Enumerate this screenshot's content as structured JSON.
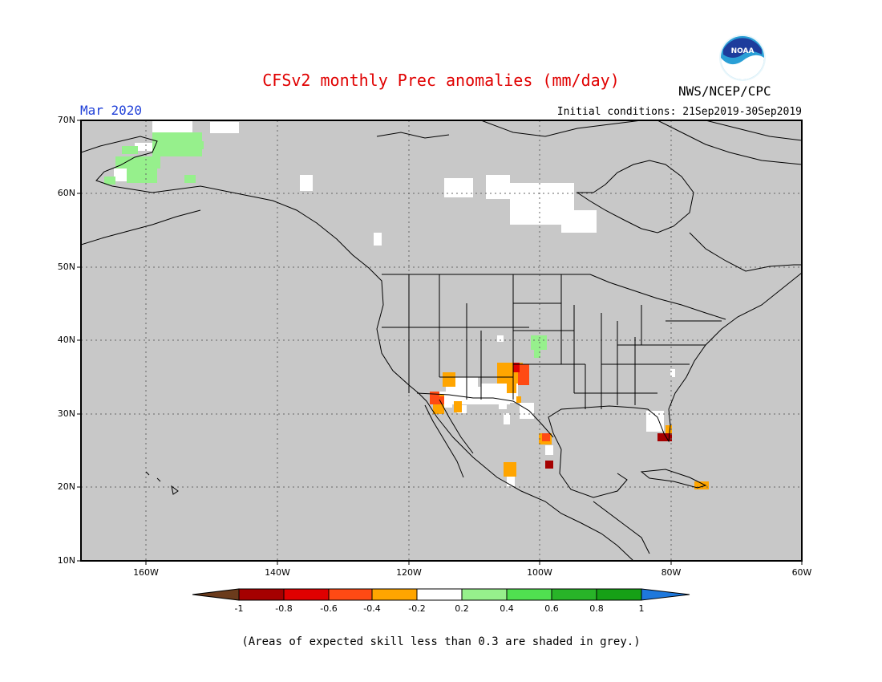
{
  "title": "CFSv2 monthly Prec anomalies (mm/day)",
  "month_label": "Mar 2020",
  "initial_conditions": "Initial conditions: 21Sep2019-30Sep2019",
  "agency": "NWS/NCEP/CPC",
  "logo_text": "NOAA",
  "footnote": "(Areas of expected skill less than 0.3 are shaded in grey.)",
  "colors": {
    "skill_grey": "#c8c8c8",
    "neutral_white": "#ffffff",
    "title_red": "#e00000",
    "month_blue": "#1f3fd8"
  },
  "map_data": {
    "type": "heatmap",
    "lat_range": [
      10,
      70
    ],
    "lon_range": [
      -170,
      -60
    ],
    "lat_labels": [
      "70N",
      "60N",
      "50N",
      "40N",
      "30N",
      "20N",
      "10N"
    ],
    "lon_labels": [
      "160W",
      "140W",
      "120W",
      "100W",
      "80W",
      "60W"
    ],
    "grid": "dotted",
    "colorbar": {
      "ticks": [
        "-1",
        "-0.8",
        "-0.6",
        "-0.4",
        "-0.2",
        "0.2",
        "0.4",
        "0.6",
        "0.8",
        "1"
      ],
      "colors": [
        "#6b3b1c",
        "#a50000",
        "#e00000",
        "#ff4a14",
        "#ffa500",
        "#ffffff",
        "#96f08c",
        "#50e050",
        "#28b428",
        "#16a016",
        "#1e78dc"
      ]
    },
    "anomaly_patches": [
      {
        "region": "Alaska west coast",
        "value": 0.3
      },
      {
        "region": "Colorado/Nebraska",
        "value": 0.3
      },
      {
        "region": "Southern California/Baja",
        "value": -0.7
      },
      {
        "region": "New Mexico",
        "value": -0.4
      },
      {
        "region": "Southeast Colorado",
        "value": -0.6
      },
      {
        "region": "Florida",
        "value": -0.8
      },
      {
        "region": "Northeast Mexico",
        "value": -0.4
      },
      {
        "region": "Central Mexico",
        "value": -0.3
      },
      {
        "region": "Hispaniola",
        "value": -0.3
      }
    ]
  }
}
